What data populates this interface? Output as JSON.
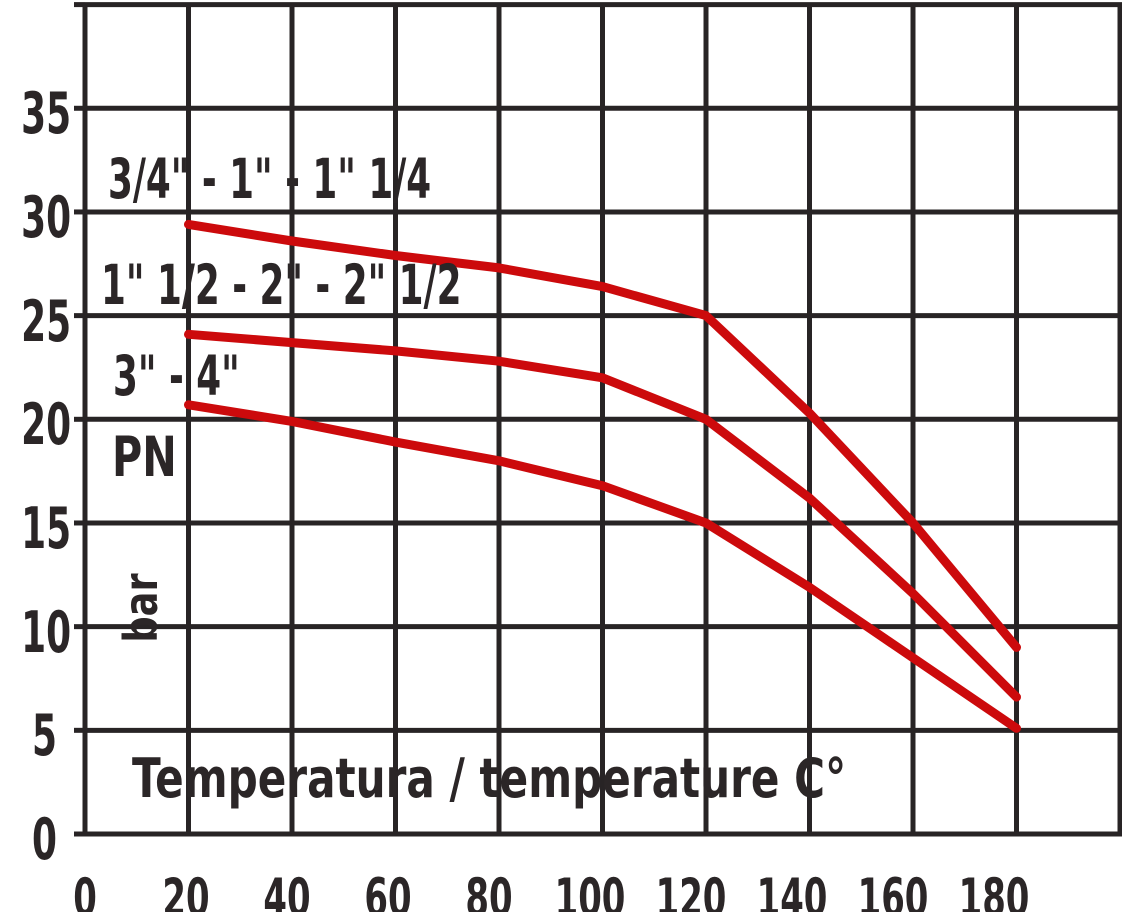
{
  "chart_data": {
    "type": "line",
    "title": "",
    "xlabel": "Temperatura / temperature C°",
    "ylabel_pn": "PN",
    "ylabel_unit": "bar",
    "x": [
      20,
      40,
      60,
      80,
      100,
      120,
      140,
      160,
      180
    ],
    "series": [
      {
        "name": "3/4\" - 1\" - 1\" 1/4",
        "values": [
          29.4,
          28.6,
          27.9,
          27.3,
          26.4,
          25.0,
          20.3,
          15.0,
          9.0
        ]
      },
      {
        "name": "1\" 1/2 - 2\" - 2\" 1/2",
        "values": [
          24.1,
          23.7,
          23.3,
          22.8,
          22.0,
          20.0,
          16.2,
          11.6,
          6.6
        ]
      },
      {
        "name": "3\" - 4\"",
        "values": [
          20.7,
          19.9,
          18.9,
          18.0,
          16.8,
          15.0,
          11.9,
          8.5,
          5.1
        ]
      }
    ],
    "x_tick_labels": [
      "0",
      "20",
      "40",
      "60",
      "80",
      "100",
      "120",
      "140",
      "160",
      "180"
    ],
    "y_tick_labels": [
      "35",
      "30",
      "25",
      "20",
      "15",
      "10",
      "5",
      "0"
    ],
    "xlim": [
      0,
      200
    ],
    "ylim": [
      0,
      40
    ],
    "x_grid_step": 20,
    "y_grid_step": 5,
    "grid": true,
    "legend_position": "inline-on-plot",
    "line_color": "#cc0a0c",
    "grid_color": "#282425",
    "text_color": "#2b2627"
  }
}
